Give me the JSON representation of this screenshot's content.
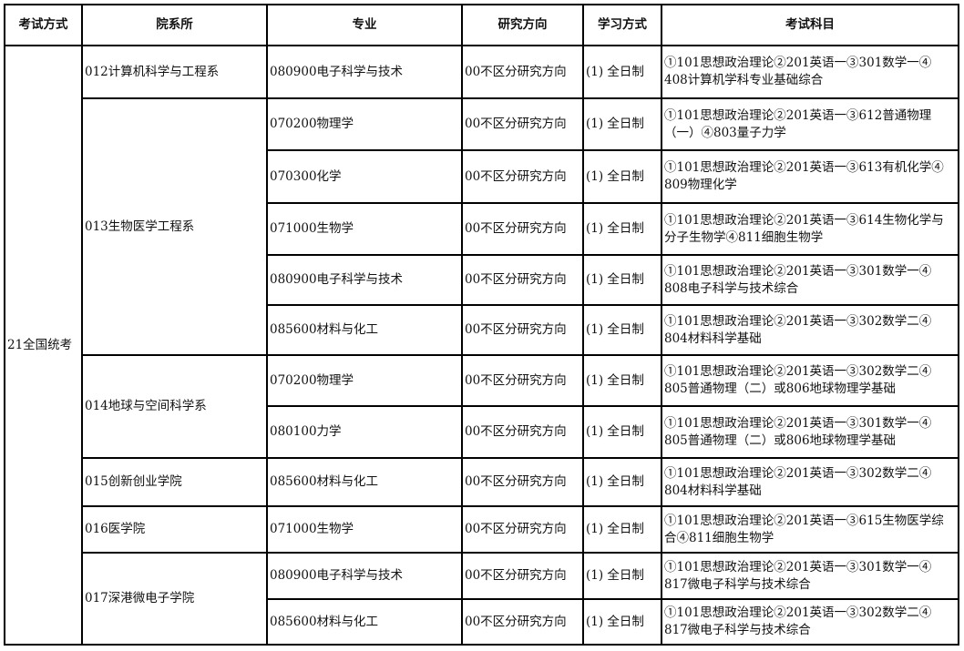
{
  "headers": [
    "考试方式",
    "院系所",
    "专业",
    "研究方向",
    "学习方式",
    "考试科目"
  ],
  "exam_method": "21全国统考",
  "departments": [
    {
      "name": "012计算机科学与工程系",
      "programs": [
        {
          "major": "080900电子科学与技术",
          "direction": "00不区分研究方向",
          "study": "(1) 全日制",
          "subjects": "①101思想政治理论②201英语一③301数学一④\n408计算机学科专业基础综合"
        }
      ]
    },
    {
      "name": "013生物医学工程系",
      "programs": [
        {
          "major": "070200物理学",
          "direction": "00不区分研究方向",
          "study": "(1) 全日制",
          "subjects": "①101思想政治理论②201英语一③612普通物理\n（一）④803量子力学"
        },
        {
          "major": "070300化学",
          "direction": "00不区分研究方向",
          "study": "(1) 全日制",
          "subjects": "①101思想政治理论②201英语一③613有机化学④\n809物理化学"
        },
        {
          "major": "071000生物学",
          "direction": "00不区分研究方向",
          "study": "(1) 全日制",
          "subjects": "①101思想政治理论②201英语一③614生物化学与\n分子生物学④811细胞生物学"
        },
        {
          "major": "080900电子科学与技术",
          "direction": "00不区分研究方向",
          "study": "(1) 全日制",
          "subjects": "①101思想政治理论②201英语一③301数学一④\n808电子科学与技术综合"
        },
        {
          "major": "085600材料与化工",
          "direction": "00不区分研究方向",
          "study": "(1) 全日制",
          "subjects": "①101思想政治理论②201英语一③302数学二④\n804材料科学基础"
        }
      ]
    },
    {
      "name": "014地球与空间科学系",
      "programs": [
        {
          "major": "070200物理学",
          "direction": "00不区分研究方向",
          "study": "(1) 全日制",
          "subjects": "①101思想政治理论②201英语一③302数学二④\n805普通物理（二）或806地球物理学基础"
        },
        {
          "major": "080100力学",
          "direction": "00不区分研究方向",
          "study": "(1) 全日制",
          "subjects": "①101思想政治理论②201英语一③301数学一④\n805普通物理（二）或806地球物理学基础"
        }
      ]
    },
    {
      "name": "015创新创业学院",
      "programs": [
        {
          "major": "085600材料与化工",
          "direction": "00不区分研究方向",
          "study": "(1) 全日制",
          "subjects": "①101思想政治理论②201英语一③302数学二④\n804材料科学基础"
        }
      ]
    },
    {
      "name": "016医学院",
      "programs": [
        {
          "major": "071000生物学",
          "direction": "00不区分研究方向",
          "study": "(1) 全日制",
          "subjects": "①101思想政治理论②201英语一③615生物医学综\n合④811细胞生物学"
        }
      ]
    },
    {
      "name": "017深港微电子学院",
      "programs": [
        {
          "major": "080900电子科学与技术",
          "direction": "00不区分研究方向",
          "study": "(1) 全日制",
          "subjects": "①101思想政治理论②201英语一③301数学一④\n817微电子科学与技术综合"
        },
        {
          "major": "085600材料与化工",
          "direction": "00不区分研究方向",
          "study": "(1) 全日制",
          "subjects": "①101思想政治理论②201英语一③302数学二④\n817微电子科学与技术综合"
        }
      ]
    }
  ]
}
